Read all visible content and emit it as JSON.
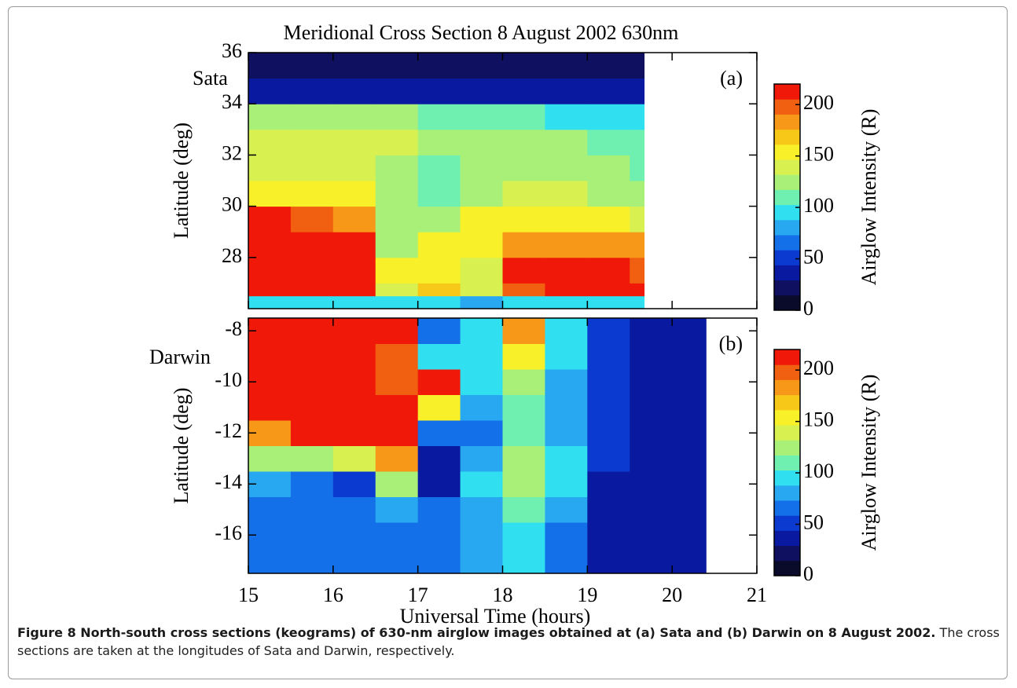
{
  "chart_data": [
    {
      "type": "heatmap",
      "title": "Meridional Cross Section   8 August 2002   630nm",
      "ylabel": "Latitude (deg)",
      "annotations": [
        "Sata",
        "(a)"
      ],
      "colorbar_label": "Airglow Intensity (R)",
      "xlim": [
        15,
        21
      ],
      "ylim": [
        26,
        36
      ],
      "yticks": [
        28,
        30,
        32,
        34,
        36
      ],
      "xbins": [
        15,
        15.5,
        16,
        16.5,
        17,
        17.5,
        18,
        18.5,
        19,
        19.5,
        19.67
      ],
      "ybins": [
        26,
        26.5,
        27,
        28,
        29,
        30,
        31,
        32,
        33,
        34,
        35,
        36
      ],
      "z": [
        [
          100,
          100,
          100,
          100,
          90,
          80,
          90,
          100,
          100,
          100
        ],
        [
          220,
          220,
          220,
          140,
          170,
          140,
          200,
          210,
          210,
          210
        ],
        [
          220,
          220,
          220,
          150,
          150,
          140,
          210,
          220,
          210,
          200
        ],
        [
          220,
          220,
          215,
          130,
          150,
          160,
          180,
          190,
          180,
          180
        ],
        [
          210,
          200,
          180,
          120,
          120,
          150,
          150,
          160,
          150,
          140
        ],
        [
          160,
          160,
          150,
          130,
          110,
          130,
          140,
          140,
          130,
          120
        ],
        [
          140,
          140,
          140,
          130,
          110,
          120,
          130,
          130,
          120,
          110
        ],
        [
          140,
          140,
          140,
          140,
          130,
          130,
          130,
          120,
          110,
          110
        ],
        [
          130,
          130,
          130,
          120,
          110,
          110,
          110,
          100,
          90,
          100
        ],
        [
          30,
          30,
          30,
          30,
          30,
          30,
          30,
          30,
          30,
          30
        ],
        [
          20,
          20,
          20,
          20,
          20,
          20,
          20,
          20,
          20,
          20
        ]
      ],
      "clim": [
        0,
        220
      ],
      "cbticks": [
        0,
        50,
        100,
        150,
        200
      ],
      "colormap": [
        "#0a0a2a",
        "#101060",
        "#0a1aa0",
        "#0a3ad0",
        "#1470e8",
        "#28a8f0",
        "#30e0f0",
        "#70f0b0",
        "#a8f078",
        "#d8f050",
        "#f8f028",
        "#f8c818",
        "#f89818",
        "#f06010",
        "#f01808"
      ]
    },
    {
      "type": "heatmap",
      "xlabel": "Universal Time (hours)",
      "ylabel": "Latitude (deg)",
      "annotations": [
        "Darwin",
        "(b)"
      ],
      "colorbar_label": "Airglow Intensity (R)",
      "xlim": [
        15,
        21
      ],
      "ylim": [
        -17.5,
        -7.5
      ],
      "xticks": [
        15,
        16,
        17,
        18,
        19,
        20,
        21
      ],
      "yticks": [
        -16,
        -14,
        -12,
        -10,
        -8
      ],
      "xbins": [
        15,
        15.5,
        16,
        16.5,
        17,
        17.5,
        18,
        18.5,
        19,
        19.5,
        20,
        20.4
      ],
      "ybins": [
        -17.5,
        -16.5,
        -15.5,
        -14.5,
        -13.5,
        -12.5,
        -11.5,
        -10.5,
        -9.5,
        -8.5,
        -7.5
      ],
      "z": [
        [
          60,
          60,
          60,
          60,
          70,
          80,
          90,
          70,
          40,
          30,
          40
        ],
        [
          60,
          60,
          60,
          70,
          70,
          80,
          100,
          70,
          40,
          30,
          40
        ],
        [
          70,
          70,
          70,
          80,
          60,
          80,
          110,
          80,
          40,
          30,
          40
        ],
        [
          80,
          70,
          50,
          120,
          40,
          90,
          120,
          90,
          40,
          30,
          40
        ],
        [
          120,
          130,
          140,
          180,
          40,
          80,
          120,
          90,
          50,
          30,
          40
        ],
        [
          180,
          210,
          220,
          220,
          70,
          70,
          110,
          80,
          50,
          30,
          40
        ],
        [
          220,
          220,
          220,
          220,
          160,
          80,
          110,
          80,
          50,
          30,
          40
        ],
        [
          220,
          220,
          220,
          200,
          210,
          90,
          130,
          80,
          50,
          30,
          40
        ],
        [
          220,
          220,
          220,
          200,
          90,
          100,
          160,
          90,
          50,
          30,
          40
        ],
        [
          220,
          220,
          220,
          220,
          60,
          100,
          180,
          90,
          50,
          30,
          40
        ]
      ],
      "clim": [
        0,
        220
      ],
      "cbticks": [
        0,
        50,
        100,
        150,
        200
      ],
      "colormap": [
        "#0a0a2a",
        "#101060",
        "#0a1aa0",
        "#0a3ad0",
        "#1470e8",
        "#28a8f0",
        "#30e0f0",
        "#70f0b0",
        "#a8f078",
        "#d8f050",
        "#f8f028",
        "#f8c818",
        "#f89818",
        "#f06010",
        "#f01808"
      ]
    }
  ],
  "caption": {
    "bold": "Figure 8 North-south cross sections (keograms) of 630-nm airglow images obtained at (a) Sata and (b) Darwin on 8 August 2002.",
    "text": "The cross sections are taken at the longitudes of Sata and Darwin, respectively."
  }
}
